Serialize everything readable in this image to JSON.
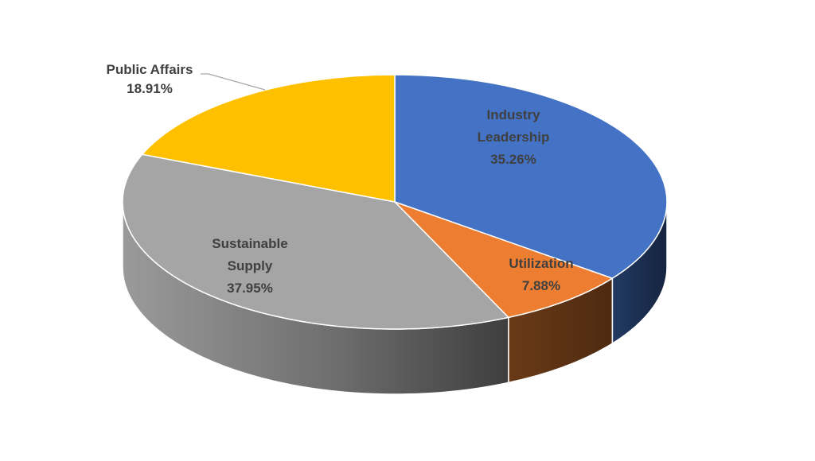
{
  "chart_data": {
    "type": "pie",
    "style": "3d",
    "title": "",
    "slices": [
      {
        "label": "Industry Leadership",
        "label_lines": [
          "Industry",
          "Leadership"
        ],
        "value": 35.26,
        "value_text": "35.26%",
        "color": "#4472C4",
        "side_color": "#1F3050"
      },
      {
        "label": "Utilization",
        "label_lines": [
          "Utilization"
        ],
        "value": 7.88,
        "value_text": "7.88%",
        "color": "#ED7D31",
        "side_color": "#5E3214"
      },
      {
        "label": "Sustainable Supply",
        "label_lines": [
          "Sustainable",
          "Supply"
        ],
        "value": 37.95,
        "value_text": "37.95%",
        "color": "#A5A5A5",
        "side_color": "#5A5A5A"
      },
      {
        "label": "Public Affairs",
        "label_lines": [
          "Public Affairs"
        ],
        "value": 18.91,
        "value_text": "18.91%",
        "color": "#FFC000",
        "side_color": "#7A5C00"
      }
    ],
    "legend": "none",
    "label_color": "#404040",
    "leader_line_color": "#A6A6A6"
  }
}
